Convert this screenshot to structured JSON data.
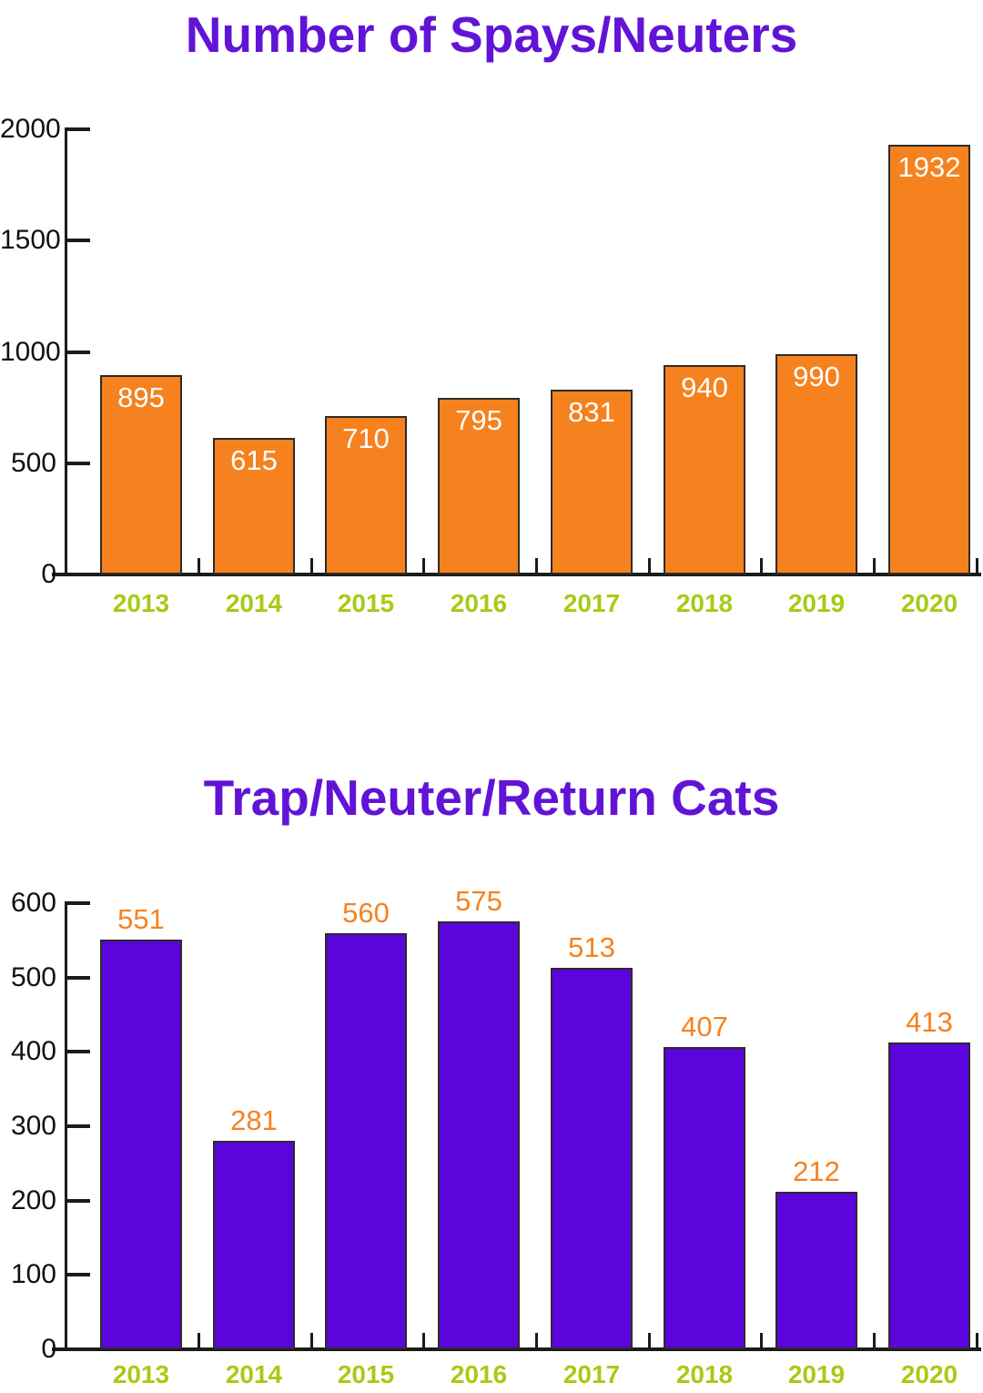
{
  "page": {
    "background": "#FFFFFF"
  },
  "colors": {
    "title_purple": "#6114D6",
    "bar_orange": "#F5821F",
    "bar_purple": "#5A05DC",
    "year_green": "#A6CB15",
    "axis_black": "#1B1B1B",
    "bar_border": "#2E2B28",
    "value_white": "#FFFFFF"
  },
  "chart_data": [
    {
      "type": "bar",
      "title": "Number of Spays/Neuters",
      "title_color": "#6114D6",
      "categories": [
        "2013",
        "2014",
        "2015",
        "2016",
        "2017",
        "2018",
        "2019",
        "2020"
      ],
      "values": [
        895,
        615,
        710,
        795,
        831,
        940,
        990,
        1932
      ],
      "ylim": [
        0,
        2000
      ],
      "ytick_step": 500,
      "yticks": [
        0,
        500,
        1000,
        1500,
        2000
      ],
      "grid": false,
      "legend": null,
      "bar_color": "#F5821F",
      "value_label_color": "#FFFFFF",
      "value_label_placement": "inside-top",
      "category_label_color": "#A6CB15"
    },
    {
      "type": "bar",
      "title": "Trap/Neuter/Return Cats",
      "title_color": "#6114D6",
      "categories": [
        "2013",
        "2014",
        "2015",
        "2016",
        "2017",
        "2018",
        "2019",
        "2020"
      ],
      "values": [
        551,
        281,
        560,
        575,
        513,
        407,
        212,
        413
      ],
      "ylim": [
        0,
        600
      ],
      "ytick_step": 100,
      "yticks": [
        0,
        100,
        200,
        300,
        400,
        500,
        600
      ],
      "grid": false,
      "legend": null,
      "bar_color": "#5A05DC",
      "value_label_color": "#F5821F",
      "value_label_placement": "above",
      "category_label_color": "#A6CB15"
    }
  ]
}
